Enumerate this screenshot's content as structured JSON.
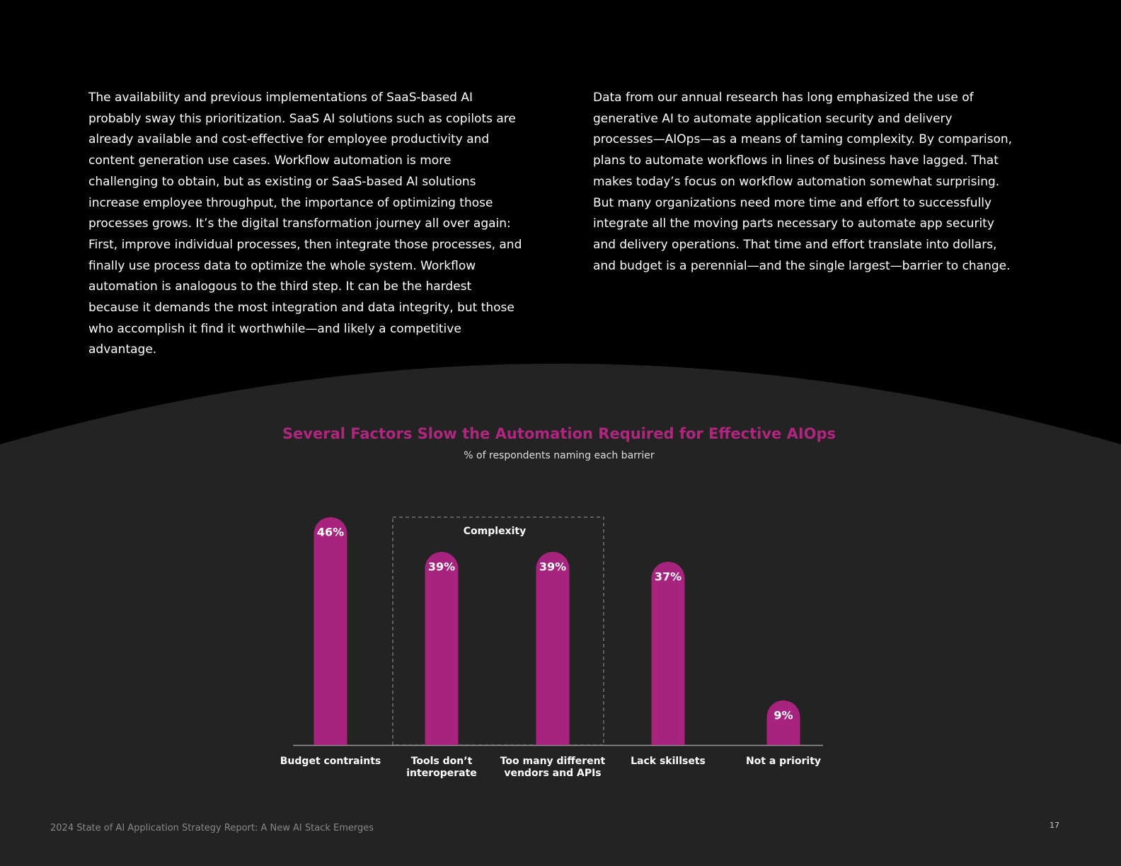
{
  "columns": [
    "The availability and previous implementations of SaaS-based AI probably sway this prioritization. SaaS AI solutions such as copilots are already available and cost-effective for employee productivity and content generation use cases. Workflow automation is more challenging to obtain, but as existing or SaaS-based AI solutions increase employee throughput, the importance of optimizing those processes grows. It’s the digital transformation journey all over again: First, improve individual processes, then integrate those processes, and finally use process data to optimize the whole system. Workflow automation is analogous to the third step. It can be the hardest because it demands the most integration and data integrity, but those who accomplish it find it worthwhile—and likely a competitive advantage.",
    "Data from our annual research has long emphasized the use of generative AI to automate application security and delivery processes—AIOps—as a means of taming complexity. By comparison, plans to automate workflows in lines of business have lagged. That makes today’s focus on workflow automation somewhat surprising. But many organizations need more time and effort to successfully integrate all the moving parts necessary to automate app security and delivery operations. That time and effort translate into dollars, and budget is a perennial—and the single largest—barrier to change."
  ],
  "chart_data": {
    "type": "bar",
    "title": "Several Factors Slow the Automation Required for Effective AIOps",
    "subtitle": "% of respondents naming each barrier",
    "annotation": "Complexity",
    "categories": [
      "Budget contraints",
      "Tools don’t interoperate",
      "Too many different vendors and APIs",
      "Lack skillsets",
      "Not a priority"
    ],
    "values": [
      46,
      39,
      39,
      37,
      9
    ],
    "value_labels": [
      "46%",
      "39%",
      "39%",
      "37%",
      "9%"
    ],
    "color": "#a8237e"
  },
  "footer": "2024 State of AI Application Strategy Report: A New AI Stack Emerges",
  "page_number": "17"
}
